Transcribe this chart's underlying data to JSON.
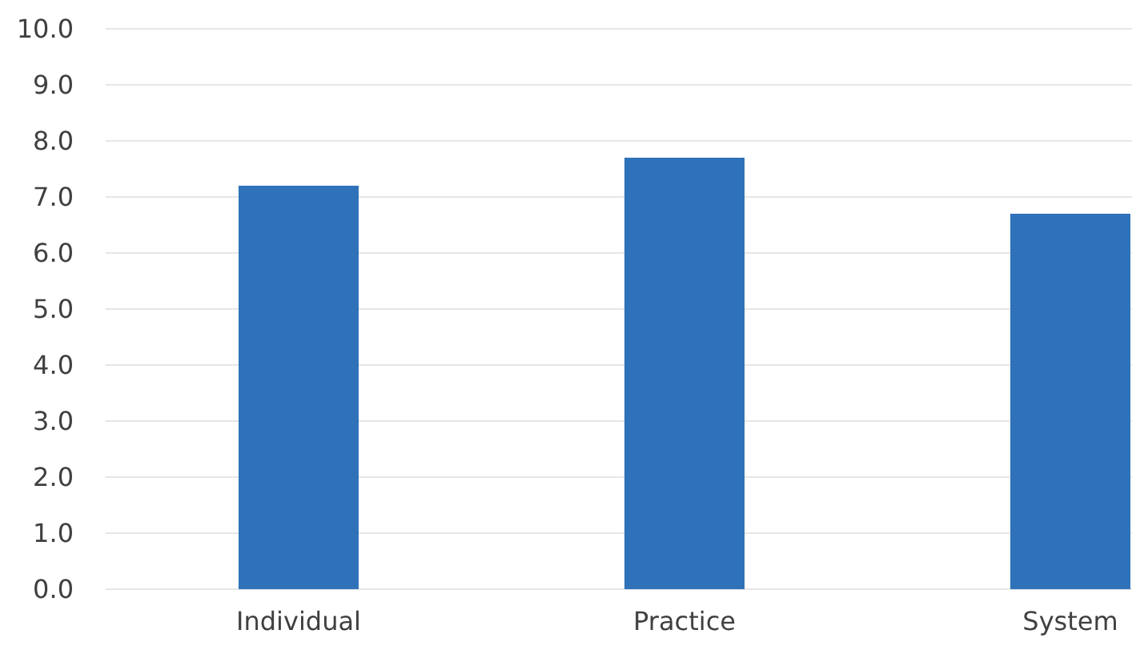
{
  "chart_data": {
    "type": "bar",
    "categories": [
      "Individual",
      "Practice",
      "System"
    ],
    "values": [
      7.2,
      7.7,
      6.7
    ],
    "color": "#2f72b9",
    "ylim": [
      0,
      10
    ],
    "yticks": [
      {
        "value": 0,
        "label": "0.0"
      },
      {
        "value": 1,
        "label": "1.0"
      },
      {
        "value": 2,
        "label": "2.0"
      },
      {
        "value": 3,
        "label": "3.0"
      },
      {
        "value": 4,
        "label": "4.0"
      },
      {
        "value": 5,
        "label": "5.0"
      },
      {
        "value": 6,
        "label": "6.0"
      },
      {
        "value": 7,
        "label": "7.0"
      },
      {
        "value": 8,
        "label": "8.0"
      },
      {
        "value": 9,
        "label": "9.0"
      },
      {
        "value": 10,
        "label": "10.0"
      }
    ],
    "grid": "y"
  }
}
